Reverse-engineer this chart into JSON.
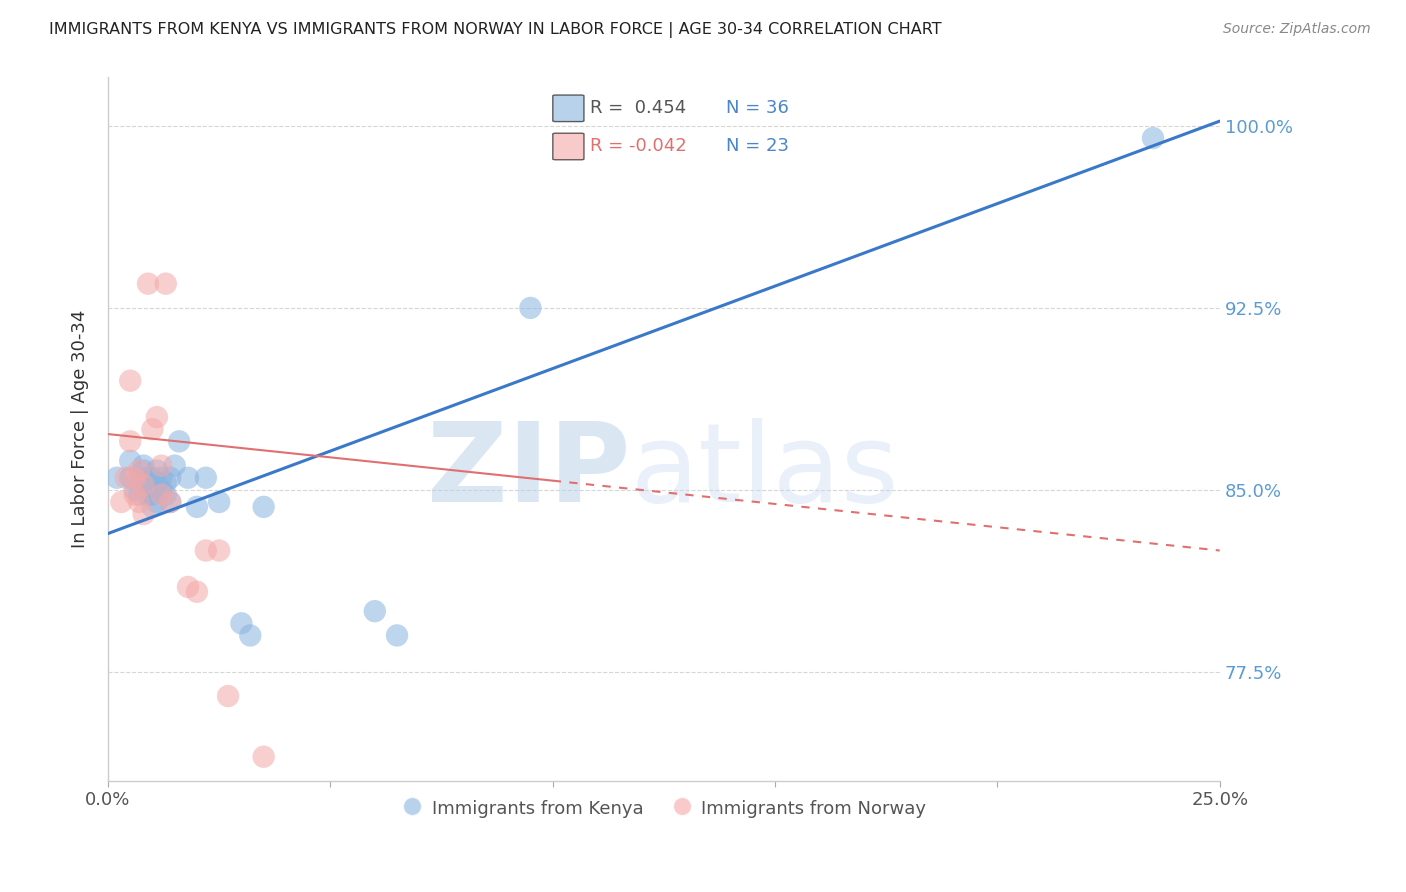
{
  "title": "IMMIGRANTS FROM KENYA VS IMMIGRANTS FROM NORWAY IN LABOR FORCE | AGE 30-34 CORRELATION CHART",
  "source": "Source: ZipAtlas.com",
  "ylabel": "In Labor Force | Age 30-34",
  "xlim": [
    0.0,
    0.25
  ],
  "ylim": [
    0.73,
    1.02
  ],
  "yticks": [
    0.775,
    0.85,
    0.925,
    1.0
  ],
  "ytick_labels": [
    "77.5%",
    "85.0%",
    "92.5%",
    "100.0%"
  ],
  "xticks": [
    0.0,
    0.05,
    0.1,
    0.15,
    0.2,
    0.25
  ],
  "xtick_labels": [
    "0.0%",
    "",
    "",
    "",
    "",
    "25.0%"
  ],
  "kenya_color": "#8ab4e0",
  "norway_color": "#f4a8a8",
  "kenya_line_color": "#3a78c9",
  "norway_line_color": "#e07070",
  "watermark_zip": "ZIP",
  "watermark_atlas": "atlas",
  "background_color": "#ffffff",
  "grid_color": "#cccccc",
  "kenya_x": [
    0.002,
    0.005,
    0.005,
    0.006,
    0.007,
    0.007,
    0.008,
    0.008,
    0.009,
    0.009,
    0.009,
    0.01,
    0.01,
    0.01,
    0.011,
    0.011,
    0.011,
    0.012,
    0.012,
    0.013,
    0.013,
    0.014,
    0.014,
    0.015,
    0.016,
    0.018,
    0.02,
    0.022,
    0.025,
    0.03,
    0.032,
    0.035,
    0.06,
    0.065,
    0.095,
    0.235
  ],
  "kenya_y": [
    0.855,
    0.855,
    0.862,
    0.85,
    0.855,
    0.848,
    0.858,
    0.86,
    0.848,
    0.855,
    0.852,
    0.855,
    0.848,
    0.843,
    0.853,
    0.858,
    0.845,
    0.85,
    0.855,
    0.853,
    0.848,
    0.845,
    0.855,
    0.86,
    0.87,
    0.855,
    0.843,
    0.855,
    0.845,
    0.795,
    0.79,
    0.843,
    0.8,
    0.79,
    0.925,
    0.995
  ],
  "norway_x": [
    0.003,
    0.004,
    0.005,
    0.005,
    0.006,
    0.006,
    0.007,
    0.007,
    0.008,
    0.008,
    0.009,
    0.01,
    0.011,
    0.012,
    0.012,
    0.013,
    0.014,
    0.018,
    0.02,
    0.022,
    0.025,
    0.027,
    0.035
  ],
  "norway_y": [
    0.845,
    0.855,
    0.895,
    0.87,
    0.848,
    0.855,
    0.858,
    0.845,
    0.852,
    0.84,
    0.935,
    0.875,
    0.88,
    0.848,
    0.86,
    0.935,
    0.845,
    0.81,
    0.808,
    0.825,
    0.825,
    0.765,
    0.74
  ],
  "kenya_trend_x0": 0.0,
  "kenya_trend_y0": 0.832,
  "kenya_trend_x1": 0.25,
  "kenya_trend_y1": 1.002,
  "norway_trend_x0": 0.0,
  "norway_trend_y0": 0.873,
  "norway_trend_x1": 0.25,
  "norway_trend_y1": 0.825
}
